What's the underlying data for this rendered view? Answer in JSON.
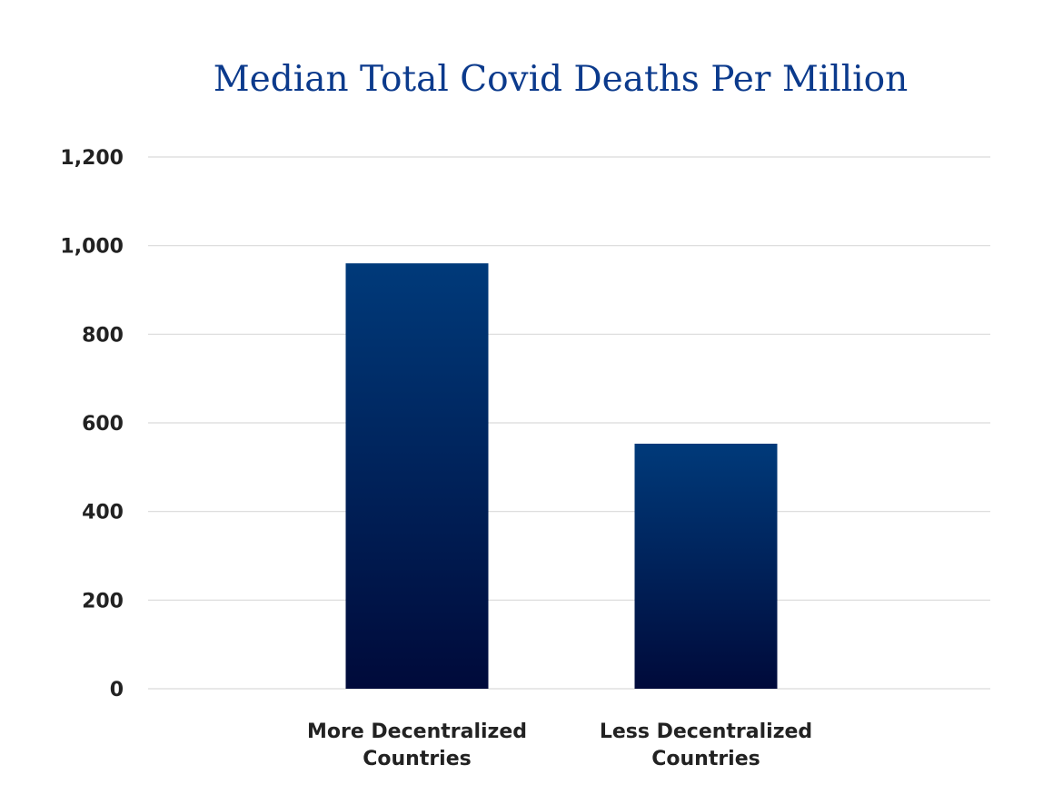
{
  "chart_data": {
    "type": "bar",
    "title": "Median Total Covid Deaths Per Million",
    "categories": [
      [
        "More Decentralized",
        "Countries"
      ],
      [
        "Less Decentralized",
        "Countries"
      ]
    ],
    "values": [
      960,
      553
    ],
    "ylim": [
      0,
      1200
    ],
    "yticks": [
      0,
      200,
      400,
      600,
      800,
      1000,
      1200
    ],
    "ytick_labels": [
      "0",
      "200",
      "400",
      "600",
      "800",
      "1,000",
      "1,200"
    ],
    "grid": true,
    "legend": "none"
  },
  "colors": {
    "title": "#0b3a8c",
    "bar_top": "#003a7a",
    "bar_bottom": "#000a3a",
    "grid": "#d9d9d9",
    "text": "#222222"
  }
}
